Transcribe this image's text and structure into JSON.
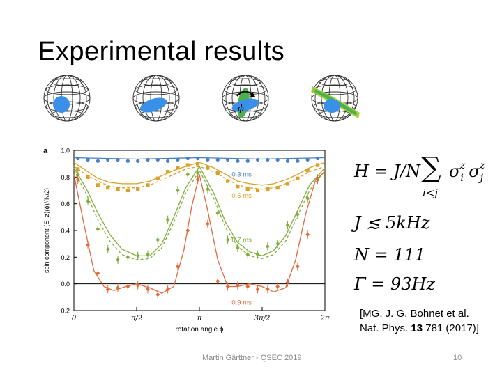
{
  "slide": {
    "title": "Experimental results",
    "footer_author": "Martin Gärttner - QSEC 2019",
    "page_number": "10"
  },
  "spheres": [
    {
      "state": "coherent"
    },
    {
      "state": "squeezed"
    },
    {
      "state": "rotated",
      "label": "ϕ"
    },
    {
      "state": "oversqueezed"
    }
  ],
  "equations": {
    "hamiltonian_lhs": "H = J/N",
    "hamiltonian_sum": "∑",
    "hamiltonian_sub": "i<j",
    "hamiltonian_terms": "σ",
    "coupling": "J ≲ 5kHz",
    "n_atoms": "N = 111",
    "gamma": "Γ = 93Hz"
  },
  "citation": {
    "line1": "[MG, J. G. Bohnet et al.",
    "journal": "Nat. Phys.",
    "volume": "13",
    "rest": "781 (2017)]"
  },
  "chart_data": {
    "type": "line",
    "panel_label": "a",
    "xlabel": "rotation angle ϕ",
    "ylabel": "spin component ⟨S_z⟩(ϕ)/(N/2)",
    "xlim": [
      0,
      6.2832
    ],
    "ylim": [
      -0.2,
      1.0
    ],
    "x_ticks": [
      {
        "value": 0,
        "label": "0"
      },
      {
        "value": 1.5708,
        "label": "π/2"
      },
      {
        "value": 3.1416,
        "label": "π"
      },
      {
        "value": 4.7124,
        "label": "3π/2"
      },
      {
        "value": 6.2832,
        "label": "2π"
      }
    ],
    "y_ticks": [
      {
        "value": -0.2,
        "label": "−0.2"
      },
      {
        "value": 0.0,
        "label": "0.0"
      },
      {
        "value": 0.2,
        "label": "0.2"
      },
      {
        "value": 0.4,
        "label": "0.4"
      },
      {
        "value": 0.6,
        "label": "0.6"
      },
      {
        "value": 0.8,
        "label": "0.8"
      },
      {
        "value": 1.0,
        "label": "1.0"
      }
    ],
    "zero_line": true,
    "series": [
      {
        "name": "0.3 ms",
        "color": "#4a7fc1",
        "x": [
          0.1,
          0.35,
          0.6,
          0.85,
          1.1,
          1.35,
          1.6,
          1.85,
          2.1,
          2.35,
          2.6,
          2.85,
          3.1,
          3.35,
          3.6,
          3.85,
          4.1,
          4.35,
          4.6,
          4.85,
          5.1,
          5.35,
          5.6,
          5.85,
          6.1
        ],
        "y": [
          0.94,
          0.93,
          0.92,
          0.93,
          0.93,
          0.92,
          0.92,
          0.93,
          0.93,
          0.92,
          0.93,
          0.94,
          0.94,
          0.93,
          0.93,
          0.93,
          0.92,
          0.92,
          0.93,
          0.93,
          0.93,
          0.92,
          0.92,
          0.93,
          0.94
        ],
        "theory_x": [
          0,
          0.785,
          1.571,
          2.356,
          3.142,
          3.927,
          4.712,
          5.498,
          6.283
        ],
        "theory_y": [
          0.945,
          0.94,
          0.935,
          0.94,
          0.945,
          0.94,
          0.935,
          0.94,
          0.945
        ]
      },
      {
        "name": "0.5 ms",
        "color": "#d9a02c",
        "x": [
          0.1,
          0.35,
          0.6,
          0.85,
          1.1,
          1.35,
          1.6,
          1.85,
          2.1,
          2.35,
          2.6,
          2.85,
          3.1,
          3.35,
          3.6,
          3.85,
          4.1,
          4.35,
          4.6,
          4.85,
          5.1,
          5.35,
          5.6,
          5.85,
          6.1
        ],
        "y": [
          0.86,
          0.8,
          0.74,
          0.72,
          0.71,
          0.7,
          0.71,
          0.74,
          0.79,
          0.84,
          0.87,
          0.89,
          0.9,
          0.87,
          0.83,
          0.77,
          0.73,
          0.71,
          0.7,
          0.71,
          0.72,
          0.75,
          0.79,
          0.85,
          0.89
        ],
        "theory_x": [
          0,
          0.3,
          0.6,
          0.9,
          1.2,
          1.571,
          1.9,
          2.2,
          2.5,
          2.8,
          3.142,
          3.5,
          3.8,
          4.1,
          4.4,
          4.712,
          5.0,
          5.3,
          5.6,
          5.9,
          6.283
        ],
        "theory_y": [
          0.91,
          0.85,
          0.79,
          0.76,
          0.75,
          0.75,
          0.77,
          0.81,
          0.85,
          0.88,
          0.91,
          0.87,
          0.82,
          0.77,
          0.75,
          0.74,
          0.75,
          0.78,
          0.82,
          0.87,
          0.91
        ],
        "theory2_y": [
          0.88,
          0.82,
          0.77,
          0.73,
          0.72,
          0.72,
          0.74,
          0.78,
          0.82,
          0.86,
          0.88,
          0.84,
          0.79,
          0.74,
          0.72,
          0.71,
          0.72,
          0.75,
          0.79,
          0.84,
          0.88
        ]
      },
      {
        "name": "0.7 ms",
        "color": "#7fae3a",
        "x": [
          0.1,
          0.35,
          0.6,
          0.85,
          1.1,
          1.35,
          1.6,
          1.85,
          2.1,
          2.35,
          2.6,
          2.85,
          3.1,
          3.35,
          3.6,
          3.85,
          4.1,
          4.35,
          4.6,
          4.85,
          5.1,
          5.35,
          5.6,
          5.85,
          6.1
        ],
        "y": [
          0.82,
          0.62,
          0.41,
          0.26,
          0.18,
          0.2,
          0.21,
          0.22,
          0.33,
          0.48,
          0.7,
          0.82,
          0.83,
          0.71,
          0.53,
          0.33,
          0.27,
          0.22,
          0.22,
          0.28,
          0.3,
          0.44,
          0.52,
          0.64,
          0.79
        ],
        "theory_x": [
          0,
          0.3,
          0.6,
          0.9,
          1.2,
          1.571,
          1.9,
          2.2,
          2.5,
          2.8,
          3.142,
          3.5,
          3.8,
          4.1,
          4.4,
          4.712,
          5.0,
          5.3,
          5.6,
          5.9,
          6.283
        ],
        "theory_y": [
          0.87,
          0.72,
          0.53,
          0.37,
          0.26,
          0.21,
          0.21,
          0.3,
          0.5,
          0.72,
          0.88,
          0.68,
          0.46,
          0.31,
          0.24,
          0.21,
          0.25,
          0.36,
          0.55,
          0.74,
          0.87
        ],
        "theory2_y": [
          0.85,
          0.68,
          0.48,
          0.32,
          0.22,
          0.18,
          0.19,
          0.27,
          0.46,
          0.68,
          0.85,
          0.64,
          0.42,
          0.28,
          0.21,
          0.19,
          0.22,
          0.32,
          0.51,
          0.7,
          0.85
        ]
      },
      {
        "name": "0.9 ms",
        "color": "#e06a3b",
        "x": [
          0.1,
          0.35,
          0.6,
          0.85,
          1.1,
          1.35,
          1.6,
          1.85,
          2.1,
          2.35,
          2.6,
          2.85,
          3.1,
          3.35,
          3.6,
          3.85,
          4.1,
          4.35,
          4.6,
          4.85,
          5.1,
          5.35,
          5.6,
          5.85,
          6.1
        ],
        "y": [
          0.78,
          0.29,
          0.08,
          -0.04,
          -0.03,
          -0.02,
          -0.01,
          -0.04,
          -0.08,
          -0.04,
          0.13,
          0.4,
          0.78,
          0.45,
          0.02,
          -0.02,
          -0.01,
          -0.02,
          -0.04,
          -0.04,
          -0.02,
          0.01,
          0.13,
          0.37,
          0.78
        ],
        "theory_x": [
          0,
          0.25,
          0.5,
          0.75,
          1.0,
          1.3,
          1.571,
          1.9,
          2.2,
          2.5,
          2.75,
          2.95,
          3.142,
          3.35,
          3.6,
          3.85,
          4.1,
          4.4,
          4.712,
          5.0,
          5.3,
          5.55,
          5.8,
          6.05,
          6.283
        ],
        "theory_y": [
          0.82,
          0.45,
          0.1,
          -0.02,
          -0.05,
          -0.02,
          0.0,
          -0.03,
          -0.07,
          -0.02,
          0.25,
          0.58,
          0.82,
          0.55,
          0.18,
          -0.02,
          -0.02,
          0.0,
          -0.02,
          -0.06,
          -0.03,
          0.18,
          0.52,
          0.78,
          0.84
        ]
      }
    ],
    "series_labels": [
      {
        "name": "0.3 ms",
        "x": 4.2,
        "y": 0.82
      },
      {
        "name": "0.5 ms",
        "x": 4.2,
        "y": 0.66
      },
      {
        "name": "0.7 ms",
        "x": 4.2,
        "y": 0.33
      },
      {
        "name": "0.9 ms",
        "x": 4.2,
        "y": -0.14
      }
    ]
  }
}
